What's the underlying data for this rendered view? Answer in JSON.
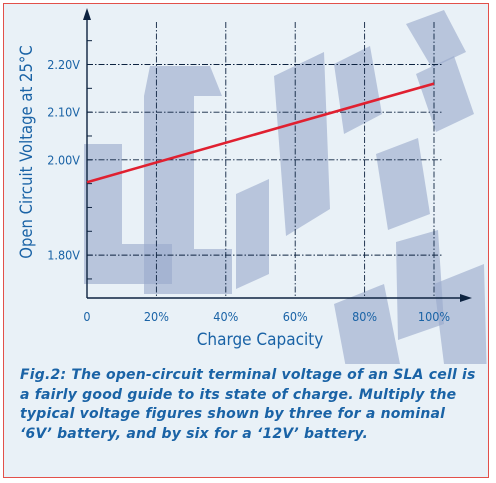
{
  "chart_data": {
    "type": "line",
    "x": [
      0,
      100
    ],
    "y": [
      1.953,
      2.16
    ],
    "xlim": [
      0,
      100
    ],
    "ylim": [
      1.71,
      2.285
    ],
    "xticks": [
      0,
      20,
      40,
      60,
      80,
      100
    ],
    "xtick_labels": [
      "0",
      "20%",
      "40%",
      "60%",
      "80%",
      "100%"
    ],
    "yticks": [
      1.8,
      2.0,
      2.1,
      2.2
    ],
    "ytick_labels": [
      "1.80V",
      "2.00V",
      "2.10V",
      "2.20V"
    ],
    "xlabel": "Charge Capacity",
    "ylabel": "Open Circuit Voltage at 25°C",
    "line_color": "#e02030",
    "text_color": "#1a63a6",
    "grid": true
  },
  "caption": "Fig.2: The open-circuit terminal voltage of an SLA cell is a fairly good guide to its state of charge. Multiply the typical voltage figures shown by three for a nominal ‘6V’ battery, and by six for a ‘12V’ battery.",
  "colors": {
    "background": "#e9f1f7",
    "border": "#e2504a",
    "watermark": "#9aa9cb",
    "axis": "#0d2340"
  }
}
